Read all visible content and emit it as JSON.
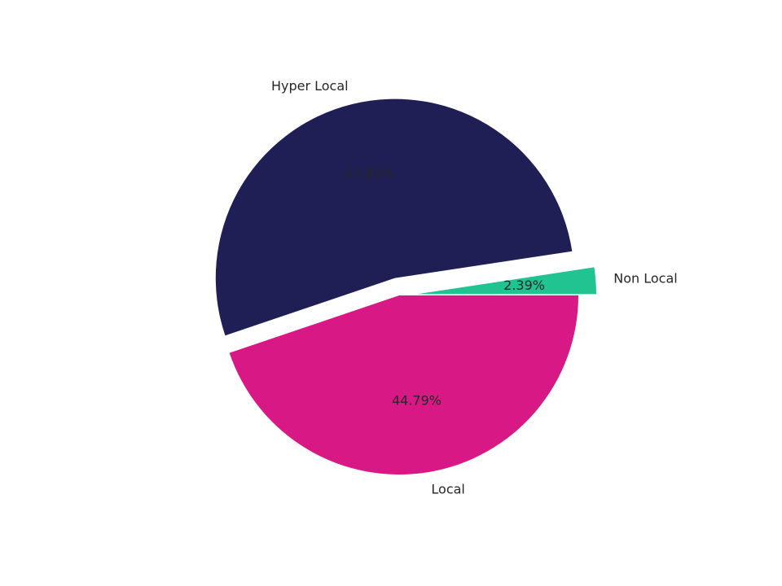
{
  "chart_data": {
    "type": "pie",
    "slices": [
      {
        "label": "Non Local",
        "value": 2.39,
        "pct_label": "2.39%",
        "color": "#21c390",
        "exploded": true
      },
      {
        "label": "Hyper Local",
        "value": 52.81,
        "pct_label": "52.81%",
        "color": "#1f1f55",
        "exploded": true
      },
      {
        "label": "Local",
        "value": 44.79,
        "pct_label": "44.79%",
        "color": "#d81884",
        "exploded": false
      }
    ],
    "start_angle_deg": 0,
    "direction": "counterclockwise",
    "legend": "none",
    "title": ""
  }
}
